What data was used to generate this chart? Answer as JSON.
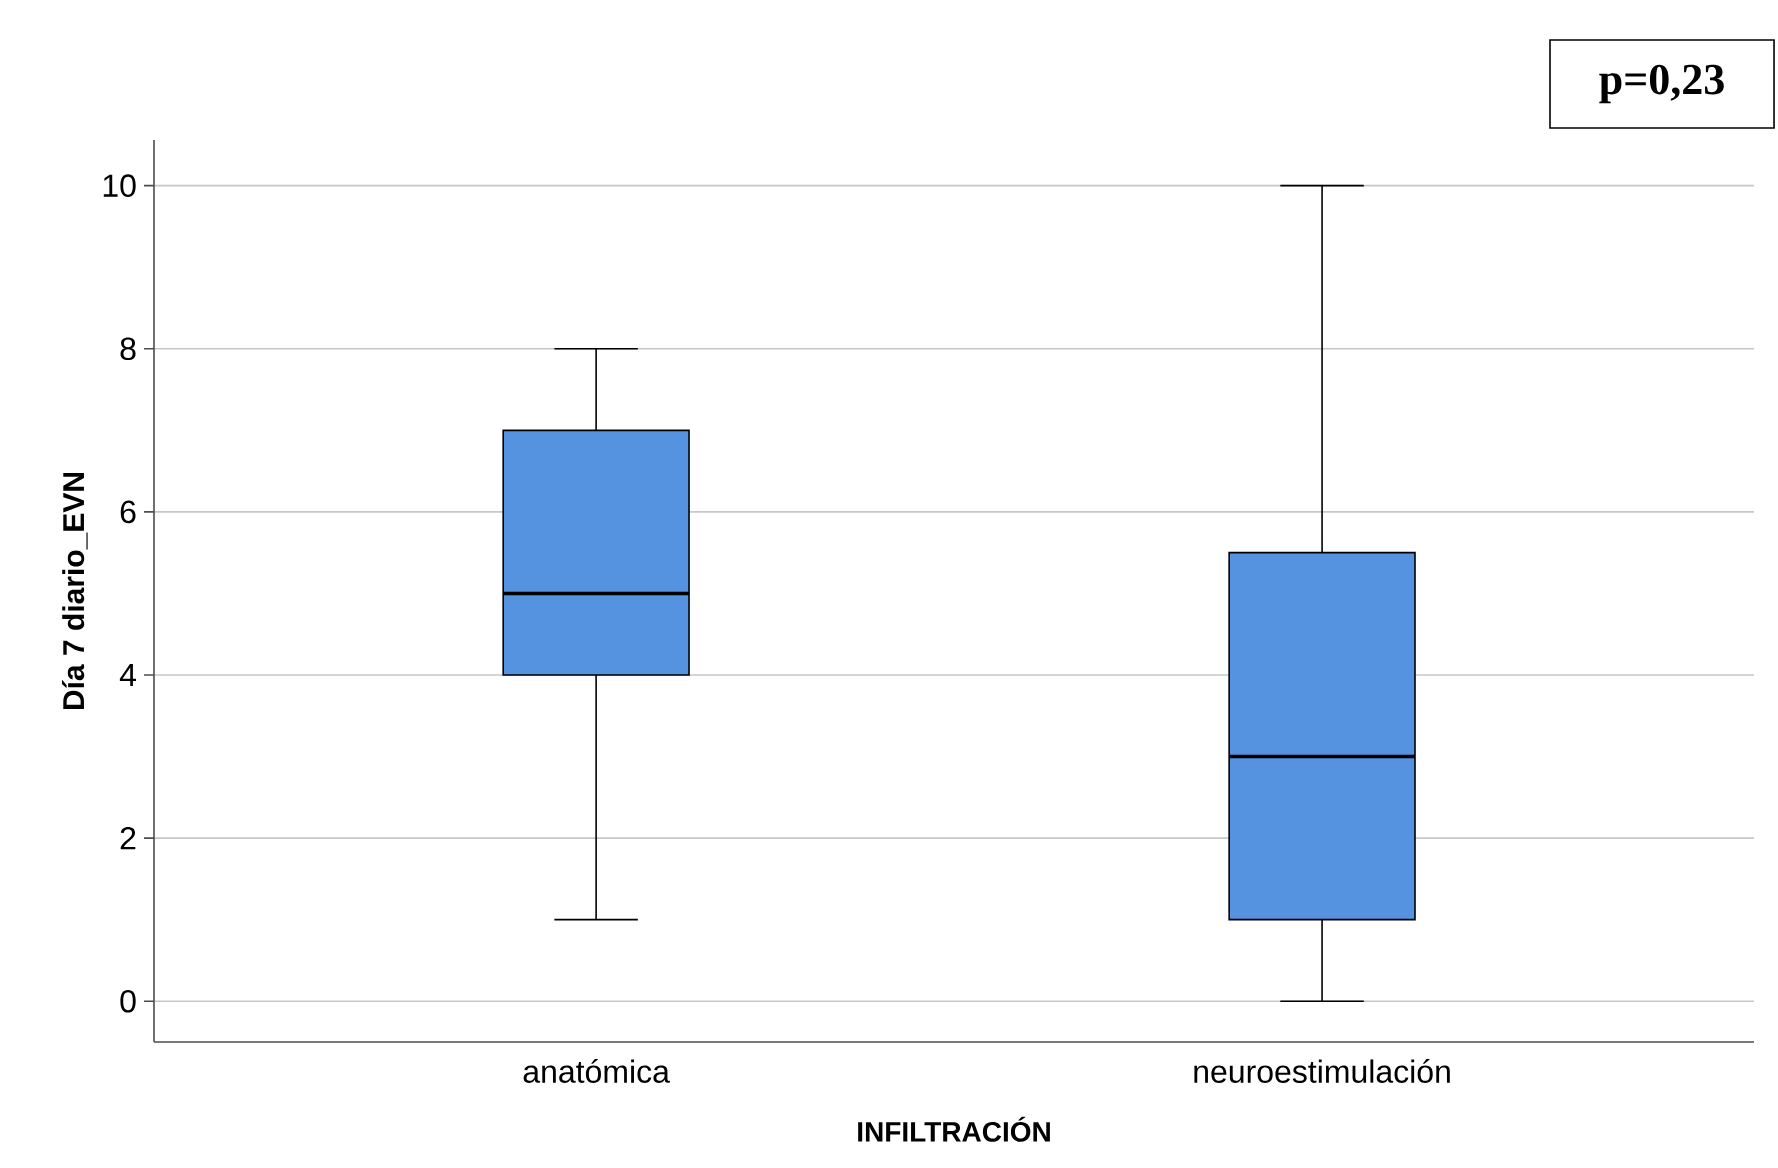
{
  "chart_data": {
    "type": "box",
    "categories": [
      "anatómica",
      "neuroestimulación"
    ],
    "boxes": [
      {
        "low": 1,
        "q1": 4,
        "median": 5,
        "q3": 7,
        "high": 8
      },
      {
        "low": 0,
        "q1": 1,
        "median": 3,
        "q3": 5.5,
        "high": 10
      }
    ],
    "color": "#5592e0",
    "xlabel": "INFILTRACIÓN",
    "ylabel": "Día 7 diario_EVN",
    "ylim": [
      -0.5,
      10.56
    ],
    "yticks": [
      0,
      2,
      4,
      6,
      8,
      10
    ],
    "grid": "y",
    "annotations": [
      "p=0,23"
    ]
  }
}
